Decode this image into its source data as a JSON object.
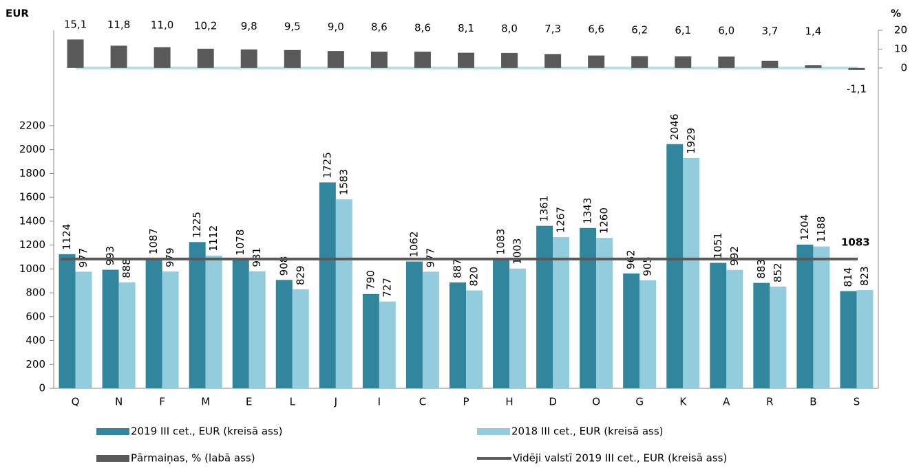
{
  "chart_data": {
    "type": "bar",
    "y_label": "EUR",
    "y2_label": "%",
    "categories": [
      "Q",
      "N",
      "F",
      "M",
      "E",
      "L",
      "J",
      "I",
      "C",
      "P",
      "H",
      "D",
      "O",
      "G",
      "K",
      "A",
      "R",
      "B",
      "S"
    ],
    "series": [
      {
        "name": "2019 III cet., EUR (kreisā ass)",
        "color": "#31859c",
        "values": [
          1124,
          993,
          1087,
          1225,
          1078,
          908,
          1725,
          790,
          1062,
          887,
          1083,
          1361,
          1343,
          962,
          2046,
          1051,
          883,
          1204,
          814
        ]
      },
      {
        "name": "2018 III cet., EUR (kreisā ass)",
        "color": "#93cddd",
        "values": [
          977,
          888,
          979,
          1112,
          981,
          829,
          1583,
          727,
          977,
          820,
          1003,
          1267,
          1260,
          905,
          1929,
          992,
          852,
          1188,
          823
        ]
      },
      {
        "name": "Pārmaiņas, %  (labā ass)",
        "color": "#595959",
        "axis": "y2",
        "values": [
          15.1,
          11.8,
          11.0,
          10.2,
          9.8,
          9.5,
          9.0,
          8.6,
          8.6,
          8.1,
          8.0,
          7.3,
          6.6,
          6.2,
          6.1,
          6.0,
          3.7,
          1.4,
          -1.1
        ],
        "value_labels": [
          "15,1",
          "11,8",
          "11,0",
          "10,2",
          "9,8",
          "9,5",
          "9,0",
          "8,6",
          "8,6",
          "8,1",
          "8,0",
          "7,3",
          "6,6",
          "6,2",
          "6,1",
          "6,0",
          "3,7",
          "1,4",
          "-1,1"
        ]
      }
    ],
    "reference_line": {
      "name": "Vidēji valstī 2019 III cet., EUR (kreisā ass)",
      "color": "#595959",
      "value": 1083
    },
    "ylim": [
      0,
      3000
    ],
    "yticks": [
      0,
      200,
      400,
      600,
      800,
      1000,
      1200,
      1400,
      1600,
      1800,
      2000,
      2200
    ],
    "y2lim": [
      -170,
      20
    ],
    "y2ticks": [
      0,
      10,
      20
    ]
  }
}
